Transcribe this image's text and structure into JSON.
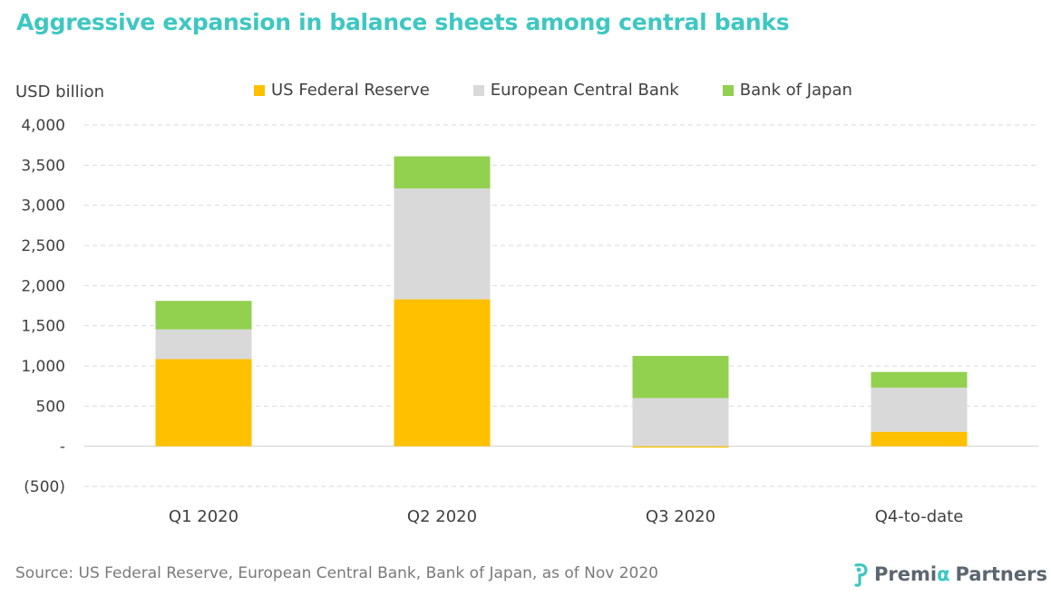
{
  "header": {
    "title": "Aggressive expansion in balance sheets among central banks",
    "title_color": "#3ec7c2"
  },
  "chart_data": {
    "type": "bar",
    "stacked": true,
    "ylabel": "USD billion",
    "ylim": [
      -500,
      4000
    ],
    "yticks": [
      -500,
      0,
      500,
      1000,
      1500,
      2000,
      2500,
      3000,
      3500,
      4000
    ],
    "ytick_labels": [
      "(500)",
      "-",
      "500",
      "1,000",
      "1,500",
      "2,000",
      "2,500",
      "3,000",
      "3,500",
      "4,000"
    ],
    "grid": true,
    "legend_position": "top",
    "categories": [
      "Q1 2020",
      "Q2 2020",
      "Q3 2020",
      "Q4-to-date"
    ],
    "series": [
      {
        "name": "US Federal Reserve",
        "color": "#ffc000",
        "values": [
          1085,
          1830,
          -10,
          180
        ]
      },
      {
        "name": "European Central Bank",
        "color": "#d9d9d9",
        "values": [
          370,
          1380,
          600,
          550
        ]
      },
      {
        "name": "Bank of Japan",
        "color": "#92d050",
        "values": [
          355,
          400,
          525,
          195
        ]
      }
    ]
  },
  "footer": {
    "source": "Source: US Federal Reserve, European Central Bank, Bank of Japan, as of Nov 2020",
    "logo_text_a": "Premi",
    "logo_text_alpha": "α",
    "logo_text_b": "Partners",
    "logo_accent": "#3ec7c2"
  }
}
